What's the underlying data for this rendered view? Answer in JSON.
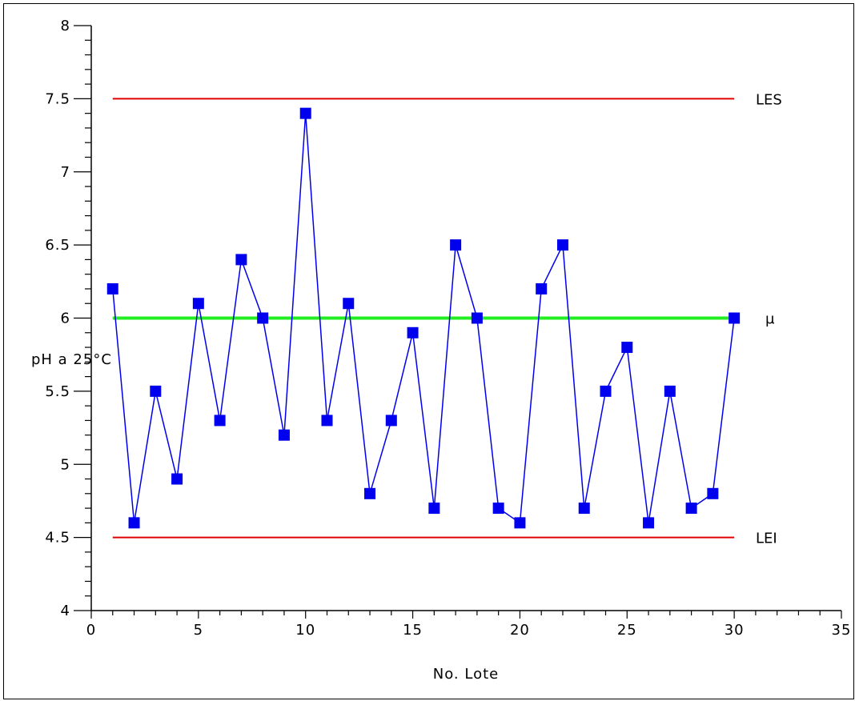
{
  "chart_data": {
    "type": "line",
    "title": "",
    "xlabel": "No. Lote",
    "ylabel": "pH a 25°C",
    "xlim": [
      0,
      35
    ],
    "ylim": [
      4,
      8
    ],
    "x_ticks": [
      0,
      5,
      10,
      15,
      20,
      25,
      30,
      35
    ],
    "x_tick_labels": [
      "0",
      "5",
      "10",
      "15",
      "20",
      "25",
      "30",
      "35"
    ],
    "y_ticks": [
      4,
      4.5,
      5,
      5.5,
      6,
      6.5,
      7,
      7.5,
      8
    ],
    "y_tick_labels": [
      "4",
      "4.5",
      "5",
      "5.5",
      "6",
      "6.5",
      "7",
      "7.5",
      "8"
    ],
    "grid": false,
    "series": [
      {
        "color": "#0000ee",
        "marker": "square",
        "x": [
          1,
          2,
          3,
          4,
          5,
          6,
          7,
          8,
          9,
          10,
          11,
          12,
          13,
          14,
          15,
          16,
          17,
          18,
          19,
          20,
          21,
          22,
          23,
          24,
          25,
          26,
          27,
          28,
          29,
          30
        ],
        "y": [
          6.2,
          4.6,
          5.5,
          4.9,
          6.1,
          5.3,
          6.4,
          6.0,
          5.2,
          7.4,
          5.3,
          6.1,
          4.8,
          5.3,
          5.9,
          4.7,
          6.5,
          6.0,
          4.7,
          4.6,
          6.2,
          6.5,
          4.7,
          5.5,
          5.8,
          4.6,
          5.5,
          4.7,
          4.8,
          6.0
        ]
      }
    ],
    "reference_lines": [
      {
        "label": "LES",
        "y": 7.5,
        "x_range": [
          1,
          30
        ],
        "color": "#e00000"
      },
      {
        "label": "μ",
        "y": 6.0,
        "x_range": [
          1,
          30
        ],
        "color": "#22ee22"
      },
      {
        "label": "LEI",
        "y": 4.5,
        "x_range": [
          1,
          30
        ],
        "color": "#e00000"
      }
    ]
  }
}
